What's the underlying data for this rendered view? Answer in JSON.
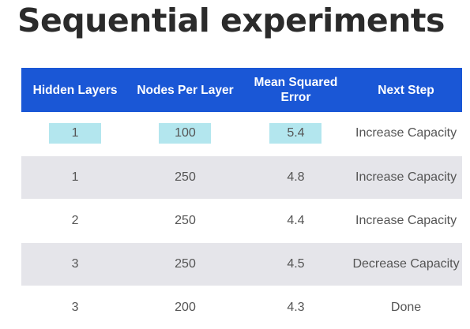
{
  "title": "Sequential experiments",
  "table": {
    "headers": [
      "Hidden Layers",
      "Nodes Per Layer",
      "Mean Squared Error",
      "Next Step"
    ],
    "rows": [
      {
        "hidden_layers": "1",
        "nodes_per_layer": "100",
        "mse": "5.4",
        "next_step": "Increase Capacity",
        "highlighted": true
      },
      {
        "hidden_layers": "1",
        "nodes_per_layer": "250",
        "mse": "4.8",
        "next_step": "Increase Capacity"
      },
      {
        "hidden_layers": "2",
        "nodes_per_layer": "250",
        "mse": "4.4",
        "next_step": "Increase Capacity"
      },
      {
        "hidden_layers": "3",
        "nodes_per_layer": "250",
        "mse": "4.5",
        "next_step": "Decrease Capacity"
      },
      {
        "hidden_layers": "3",
        "nodes_per_layer": "200",
        "mse": "4.3",
        "next_step": "Done"
      }
    ]
  },
  "colors": {
    "header_bg": "#1a57d6",
    "shaded_row_bg": "#e5e5ea",
    "highlight_bg": "#b3e6ee",
    "title_text": "#2b2b2b",
    "cell_text": "#555555"
  }
}
